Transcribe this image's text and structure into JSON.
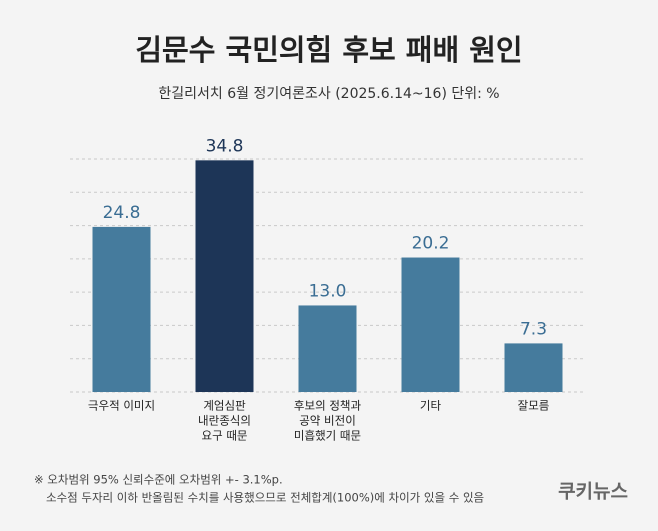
{
  "chart_data": {
    "type": "bar",
    "title": "김문수 국민의힘 후보 패배 원인",
    "subtitle": "한길리서치 6월 정기여론조사 (2025.6.14~16) 단위: %",
    "categories": [
      [
        "극우적 이미지"
      ],
      [
        "계엄심판",
        "내란종식의",
        "요구 때문"
      ],
      [
        "후보의 정책과",
        "공약 비전이",
        "미흡했기 때문"
      ],
      [
        "기타"
      ],
      [
        "잘모름"
      ]
    ],
    "values": [
      24.8,
      34.8,
      13.0,
      20.2,
      7.3
    ],
    "value_labels": [
      "24.8",
      "34.8",
      "13.0",
      "20.2",
      "7.3"
    ],
    "colors": [
      "#457b9d",
      "#1d3557",
      "#457b9d",
      "#457b9d",
      "#457b9d"
    ],
    "ylim": [
      0,
      35
    ],
    "yticks": [
      0,
      5,
      10,
      15,
      20,
      25,
      30,
      35
    ],
    "grid": true,
    "notes": [
      "※ 오차범위 95% 신뢰수준에 오차범위 +- 3.1%p.",
      "소수점 두자리 이하 반올림된 수치를 사용했으므로 전체합계(100%)에 차이가 있을 수 있음"
    ],
    "source": "쿠키뉴스"
  }
}
